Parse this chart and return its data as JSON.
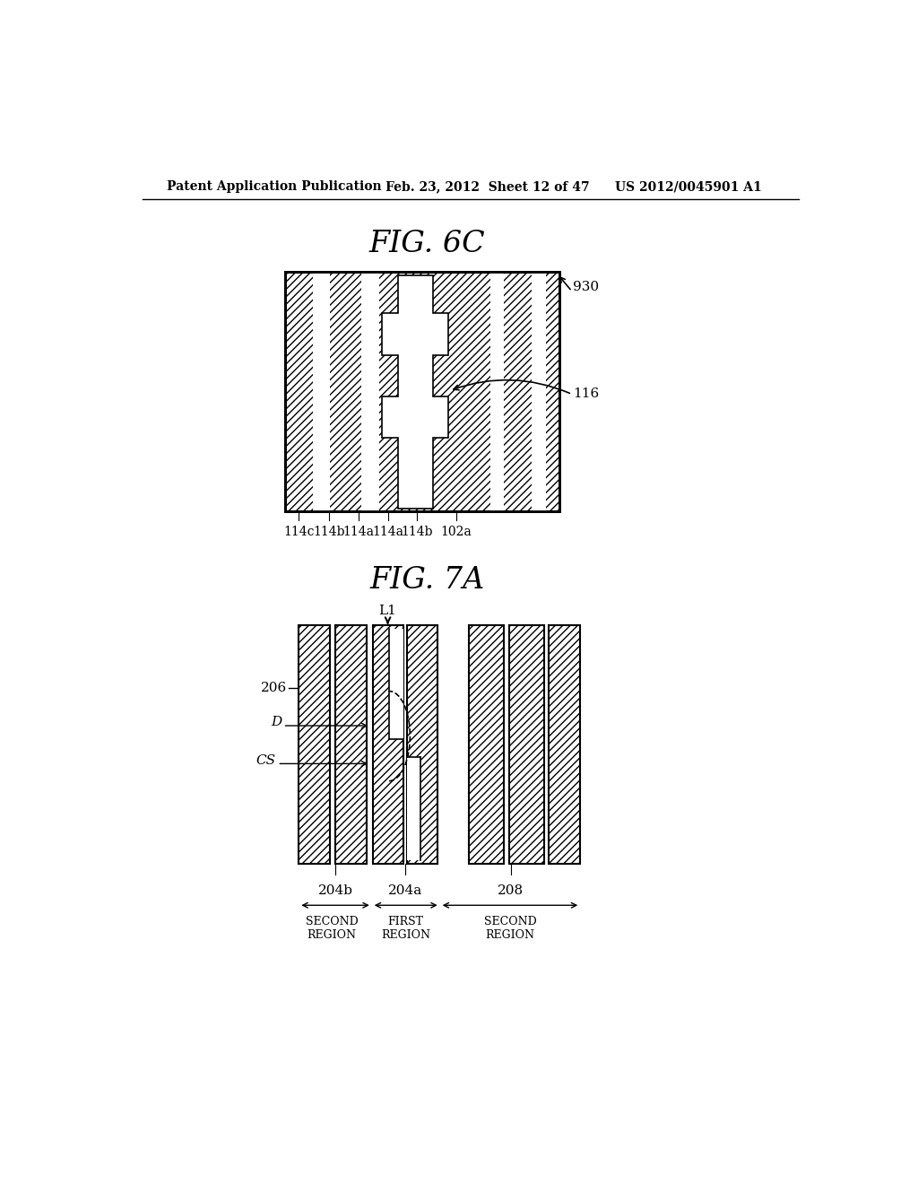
{
  "header_left": "Patent Application Publication",
  "header_mid": "Feb. 23, 2012  Sheet 12 of 47",
  "header_right": "US 2012/0045901 A1",
  "fig6c_title": "FIG. 6C",
  "fig7a_title": "FIG. 7A",
  "bg_color": "#ffffff",
  "label_930": "930",
  "label_116": "116",
  "labels_6c": [
    [
      "114c",
      265
    ],
    [
      "114b",
      308
    ],
    [
      "114a",
      351
    ],
    [
      "114a",
      393
    ],
    [
      "114b",
      435
    ],
    [
      "102a",
      491
    ]
  ],
  "label_206": "206",
  "label_D": "D",
  "label_CS": "CS",
  "label_L1": "L1",
  "label_204b": "204b",
  "label_204a": "204a",
  "label_208": "208",
  "label_second_region1": "SECOND\nREGION",
  "label_first_region": "FIRST\nREGION",
  "label_second_region2": "SECOND\nREGION"
}
